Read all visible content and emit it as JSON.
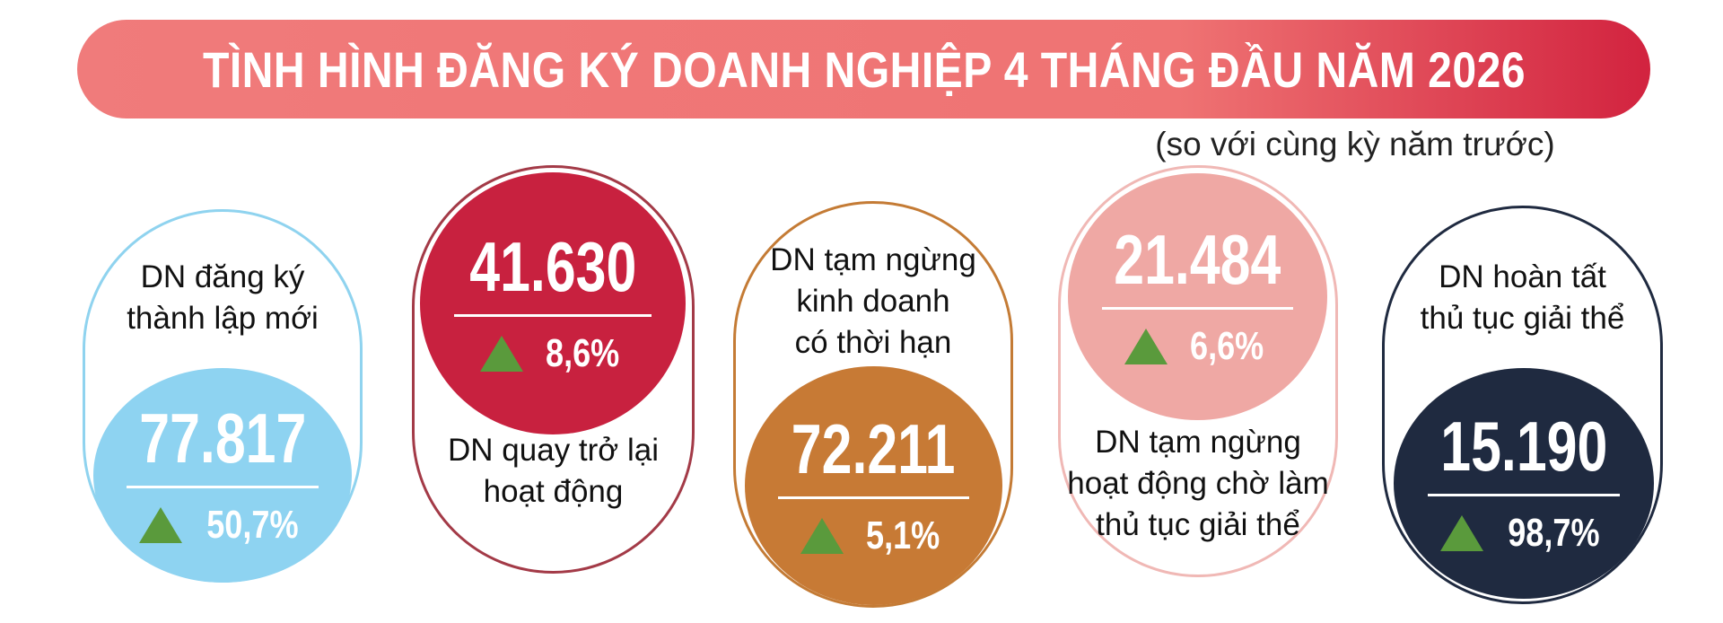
{
  "header": {
    "title": "TÌNH HÌNH ĐĂNG KÝ DOANH NGHIỆP 4 THÁNG ĐẦU NĂM 2026",
    "subtitle": "(so với cùng kỳ năm trước)"
  },
  "cards": [
    {
      "label": [
        "DN đăng ký",
        "thành lập mới"
      ],
      "value": "77.817",
      "change": "50,7%"
    },
    {
      "label": [
        "DN quay trở lại",
        "hoạt động"
      ],
      "value": "41.630",
      "change": "8,6%"
    },
    {
      "label": [
        "DN tạm ngừng",
        "kinh doanh",
        "có thời hạn"
      ],
      "value": "72.211",
      "change": "5,1%"
    },
    {
      "label": [
        "DN tạm ngừng",
        "hoạt động chờ làm",
        "thủ tục giải thể"
      ],
      "value": "21.484",
      "change": "6,6%"
    },
    {
      "label": [
        "DN hoàn tất",
        "thủ tục giải thể"
      ],
      "value": "15.190",
      "change": "98,7%"
    }
  ]
}
